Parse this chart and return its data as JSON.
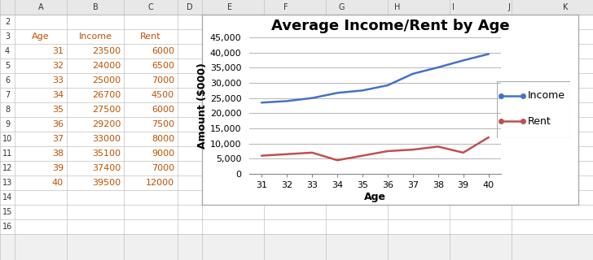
{
  "ages": [
    31,
    32,
    33,
    34,
    35,
    36,
    37,
    38,
    39,
    40
  ],
  "income": [
    23500,
    24000,
    25000,
    26700,
    27500,
    29200,
    33000,
    35100,
    37400,
    39500
  ],
  "rent": [
    6000,
    6500,
    7000,
    4500,
    6000,
    7500,
    8000,
    9000,
    7000,
    12000
  ],
  "title": "Average Income/Rent by Age",
  "xlabel": "Age",
  "ylabel": "Amount ($000)",
  "income_color": "#4472C4",
  "rent_color": "#C0504D",
  "income_label": "Income",
  "rent_label": "Rent",
  "ylim": [
    0,
    45000
  ],
  "yticks": [
    0,
    5000,
    10000,
    15000,
    20000,
    25000,
    30000,
    35000,
    40000,
    45000
  ],
  "col_headers": [
    "",
    "A",
    "B",
    "C",
    "D",
    "E",
    "F",
    "G",
    "H",
    "I",
    "J",
    "K"
  ],
  "row_labels": [
    "2",
    "3",
    "4",
    "5",
    "6",
    "7",
    "8",
    "9",
    "10",
    "11",
    "12",
    "13",
    "14",
    "15",
    "16"
  ],
  "table_headers": [
    "Age",
    "Income",
    "Rent"
  ],
  "excel_bg": "#F0F0F0",
  "cell_bg": "#FFFFFF",
  "header_bg": "#E8E8E8",
  "grid_line": "#C0C0C0",
  "excel_text": "#000000",
  "data_text": "#C05000",
  "chart_bg": "#FFFFFF",
  "chart_grid": "#AAAAAA",
  "title_fontsize": 13,
  "axis_label_fontsize": 9,
  "tick_fontsize": 8,
  "legend_fontsize": 9,
  "excel_fontsize": 7,
  "table_fontsize": 8
}
